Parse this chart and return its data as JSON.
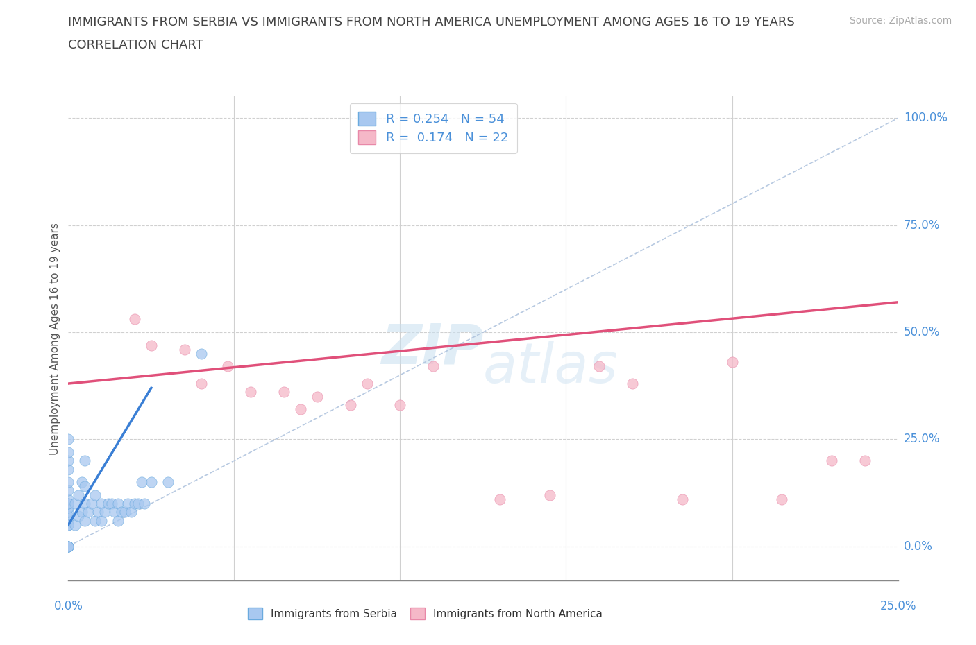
{
  "title_line1": "IMMIGRANTS FROM SERBIA VS IMMIGRANTS FROM NORTH AMERICA UNEMPLOYMENT AMONG AGES 16 TO 19 YEARS",
  "title_line2": "CORRELATION CHART",
  "source_text": "Source: ZipAtlas.com",
  "ylabel": "Unemployment Among Ages 16 to 19 years",
  "xlim": [
    0.0,
    0.25
  ],
  "ylim": [
    0.0,
    1.0
  ],
  "xticks": [
    0.0,
    0.05,
    0.1,
    0.15,
    0.2,
    0.25
  ],
  "ytick_labels": [
    "0.0%",
    "25.0%",
    "50.0%",
    "75.0%",
    "100.0%"
  ],
  "yticks": [
    0.0,
    0.25,
    0.5,
    0.75,
    1.0
  ],
  "serbia_color": "#a8c8f0",
  "serbia_edge_color": "#6aaade",
  "serbia_line_color": "#3a7fd5",
  "north_america_color": "#f5b8c8",
  "north_america_edge_color": "#e888a8",
  "north_america_line_color": "#e0507a",
  "diagonal_color": "#b0c4de",
  "label_color": "#4a90d9",
  "R_serbia": 0.254,
  "N_serbia": 54,
  "R_north_america": 0.174,
  "N_north_america": 22,
  "serbia_scatter_x": [
    0.0,
    0.0,
    0.0,
    0.0,
    0.0,
    0.0,
    0.0,
    0.0,
    0.0,
    0.0,
    0.0,
    0.0,
    0.0,
    0.0,
    0.0,
    0.0,
    0.0,
    0.0,
    0.0,
    0.0,
    0.002,
    0.002,
    0.003,
    0.003,
    0.004,
    0.004,
    0.005,
    0.005,
    0.005,
    0.005,
    0.006,
    0.007,
    0.008,
    0.008,
    0.009,
    0.01,
    0.01,
    0.011,
    0.012,
    0.013,
    0.014,
    0.015,
    0.015,
    0.016,
    0.017,
    0.018,
    0.019,
    0.02,
    0.021,
    0.022,
    0.023,
    0.025,
    0.03,
    0.04
  ],
  "serbia_scatter_y": [
    0.0,
    0.0,
    0.0,
    0.0,
    0.0,
    0.05,
    0.06,
    0.07,
    0.08,
    0.09,
    0.1,
    0.11,
    0.13,
    0.15,
    0.18,
    0.2,
    0.22,
    0.25,
    0.05,
    0.1,
    0.05,
    0.1,
    0.07,
    0.12,
    0.08,
    0.15,
    0.06,
    0.1,
    0.14,
    0.2,
    0.08,
    0.1,
    0.06,
    0.12,
    0.08,
    0.06,
    0.1,
    0.08,
    0.1,
    0.1,
    0.08,
    0.06,
    0.1,
    0.08,
    0.08,
    0.1,
    0.08,
    0.1,
    0.1,
    0.15,
    0.1,
    0.15,
    0.15,
    0.45
  ],
  "north_america_scatter_x": [
    0.02,
    0.025,
    0.035,
    0.04,
    0.048,
    0.055,
    0.065,
    0.07,
    0.075,
    0.085,
    0.09,
    0.1,
    0.11,
    0.13,
    0.145,
    0.16,
    0.17,
    0.185,
    0.2,
    0.215,
    0.23,
    0.24
  ],
  "north_america_scatter_y": [
    0.53,
    0.47,
    0.46,
    0.38,
    0.42,
    0.36,
    0.36,
    0.32,
    0.35,
    0.33,
    0.38,
    0.33,
    0.42,
    0.11,
    0.12,
    0.42,
    0.38,
    0.11,
    0.43,
    0.11,
    0.2,
    0.2
  ],
  "serbia_trend_x": [
    0.0,
    0.025
  ],
  "serbia_trend_y": [
    0.05,
    0.37
  ],
  "na_trend_x": [
    0.0,
    0.25
  ],
  "na_trend_y": [
    0.38,
    0.57
  ],
  "watermark_top": "ZIP",
  "watermark_bottom": "atlas"
}
